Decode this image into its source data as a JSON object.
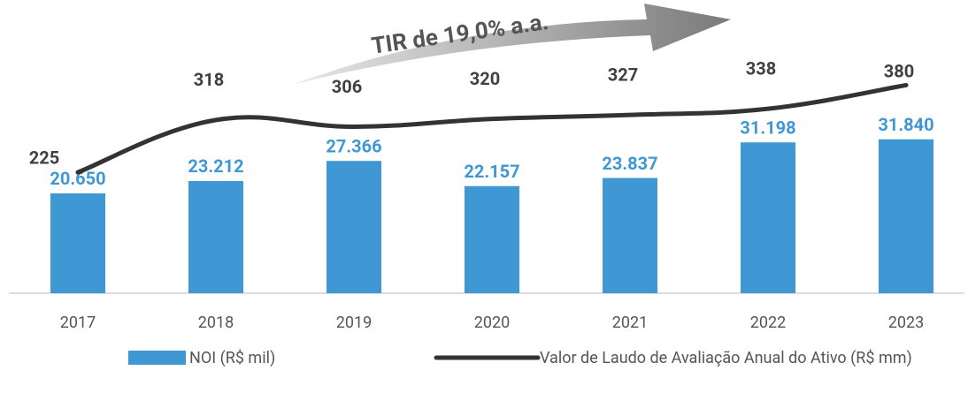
{
  "chart_data": {
    "type": "bar-line",
    "annotation": "TIR de 19,0% a.a.",
    "categories": [
      "2017",
      "2018",
      "2019",
      "2020",
      "2021",
      "2022",
      "2023"
    ],
    "series": [
      {
        "name": "NOI (R$ mil)",
        "color": "#3f97d4",
        "type": "bar",
        "values": [
          20650,
          23212,
          27366,
          22157,
          23837,
          31198,
          31840
        ],
        "value_labels": [
          "20.650",
          "23.212",
          "27.366",
          "22.157",
          "23.837",
          "31.198",
          "31.840"
        ]
      },
      {
        "name": "Valor de Laudo de Avaliação Anual do Ativo (R$ mm)",
        "color": "#333333",
        "type": "line",
        "axis": "y2",
        "values": [
          225,
          318,
          306,
          320,
          327,
          338,
          380
        ]
      }
    ],
    "ylim": [
      0,
      57000
    ],
    "y2lim": [
      10,
      500
    ]
  }
}
